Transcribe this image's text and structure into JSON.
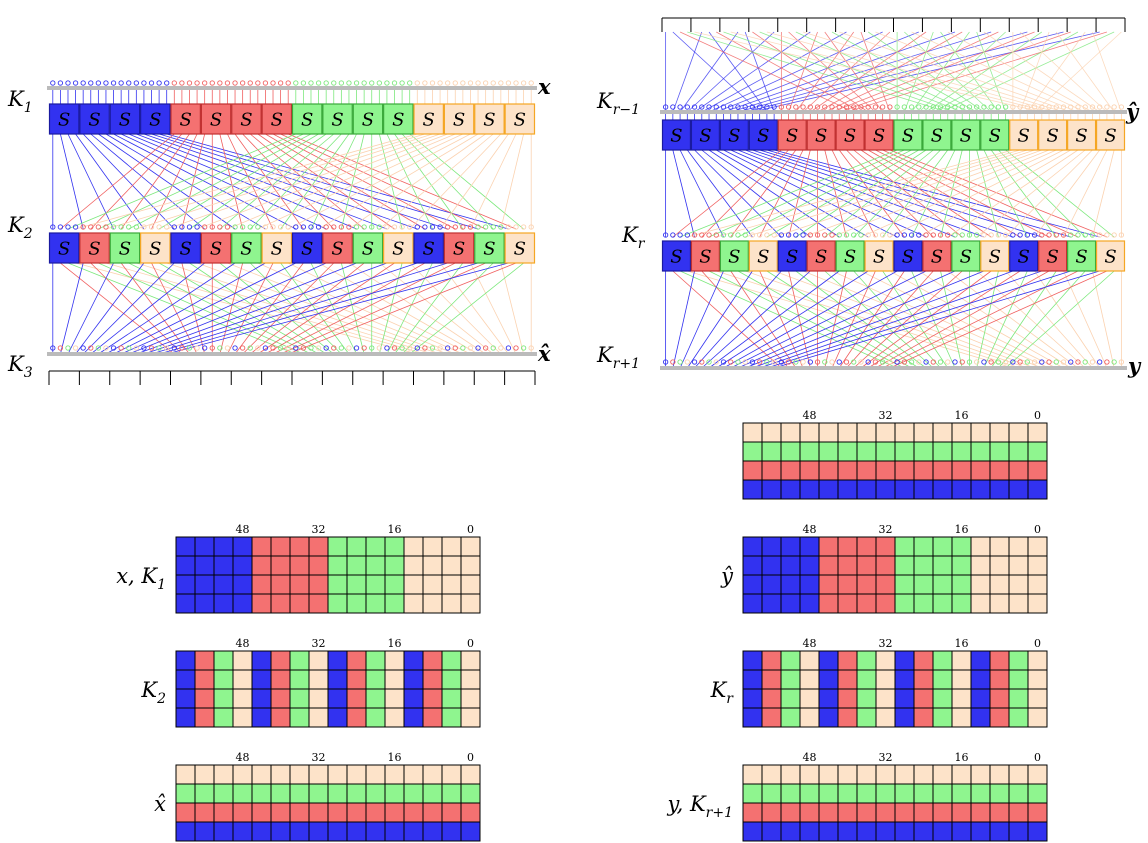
{
  "colors": {
    "blue": "#3232f0",
    "red": "#f47171",
    "green": "#8ff58f",
    "peach": "#fde3c9",
    "bus": "#bbbbbb",
    "peach_border": "#f5a623"
  },
  "sbox_label": "S",
  "left_diagram": {
    "key1": {
      "main": "K",
      "sub": "1"
    },
    "key2": {
      "main": "K",
      "sub": "2"
    },
    "key3": {
      "main": "K",
      "sub": "3"
    },
    "input": "x",
    "output": "x̂"
  },
  "right_diagram": {
    "key1": {
      "main": "K",
      "sub": "r−1"
    },
    "key2": {
      "main": "K",
      "sub": "r"
    },
    "key3": {
      "main": "K",
      "sub": "r+1"
    },
    "input": "ŷ",
    "output": "y"
  },
  "tick_labels": [
    "48",
    "32",
    "16",
    "0"
  ],
  "grids": [
    {
      "label": "x, K",
      "sub": "1",
      "pattern": "blocks"
    },
    {
      "label": "K",
      "sub": "2",
      "pattern": "columns"
    },
    {
      "label": "x̂",
      "sub": "",
      "pattern": "rows"
    },
    {
      "label": "",
      "sub": "",
      "pattern": "rows"
    },
    {
      "label": "ŷ",
      "sub": "",
      "pattern": "blocks"
    },
    {
      "label": "K",
      "sub": "r",
      "pattern": "columns"
    },
    {
      "label": "y, K",
      "sub": "r+1",
      "pattern": "rows"
    }
  ]
}
